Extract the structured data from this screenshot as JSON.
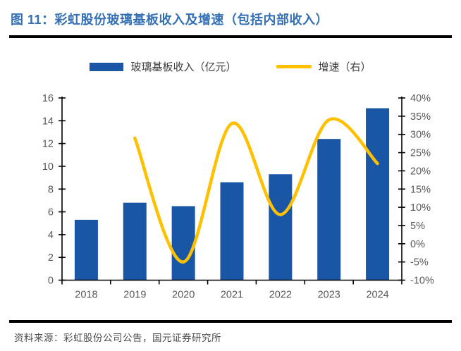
{
  "header": {
    "title": "图 11：彩虹股份玻璃基板收入及增速（包括内部收入）"
  },
  "legend": {
    "items": [
      {
        "label": "玻璃基板收入（亿元）",
        "swatch": "bar",
        "color": "#1A56A6"
      },
      {
        "label": "增速（右）",
        "swatch": "line",
        "color": "#FFC000"
      }
    ]
  },
  "footer": {
    "source": "资料来源：彩虹股份公司公告，国元证券研究所"
  },
  "colors": {
    "title_blue": "#3470B4",
    "bar_blue": "#1A56A6",
    "line_yellow": "#FFC000",
    "axis_black": "#000000",
    "tick_gray": "#595959"
  },
  "chart_data": {
    "type": "bar",
    "title": "彩虹股份玻璃基板收入及增速（包括内部收入）",
    "categories": [
      "2018",
      "2019",
      "2020",
      "2021",
      "2022",
      "2023",
      "2024"
    ],
    "series": [
      {
        "name": "玻璃基板收入（亿元）",
        "type": "bar",
        "axis": "left",
        "color": "#1A56A6",
        "values": [
          5.3,
          6.8,
          6.5,
          8.6,
          9.3,
          12.4,
          15.1
        ]
      },
      {
        "name": "增速（右）",
        "type": "line",
        "axis": "right",
        "color": "#FFC000",
        "smooth": true,
        "unit": "%",
        "values": [
          null,
          29,
          -5,
          33,
          8,
          34,
          22
        ]
      }
    ],
    "left_axis": {
      "min": 0,
      "max": 16,
      "step": 2,
      "tick_labels": [
        "0",
        "2",
        "4",
        "6",
        "8",
        "10",
        "12",
        "14",
        "16"
      ]
    },
    "right_axis": {
      "min": -10,
      "max": 40,
      "step": 5,
      "unit": "%",
      "tick_labels": [
        "-10%",
        "-5%",
        "0%",
        "5%",
        "10%",
        "15%",
        "20%",
        "25%",
        "30%",
        "35%",
        "40%"
      ]
    },
    "xlabel": "",
    "ylabel": "",
    "grid": false,
    "legend_position": "top"
  }
}
